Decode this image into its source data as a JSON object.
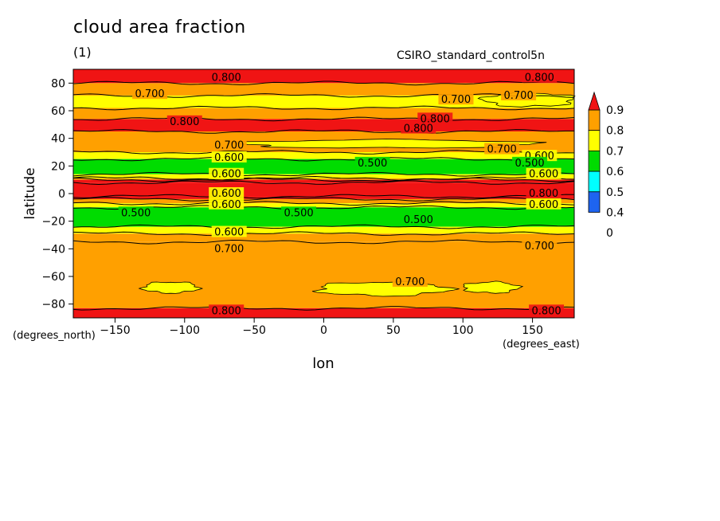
{
  "title": "cloud area fraction",
  "units": "(1)",
  "dataset": "CSIRO_standard_control5n",
  "chart_data": {
    "type": "heatmap",
    "title": "cloud area fraction",
    "xlabel": "lon",
    "ylabel": "latitude",
    "x_units": "(degrees_east)",
    "y_units": "(degrees_north)",
    "xlim": [
      -180,
      180
    ],
    "ylim": [
      -90,
      90
    ],
    "x_ticks": [
      -150,
      -100,
      -50,
      0,
      50,
      100,
      150
    ],
    "y_ticks": [
      -80,
      -60,
      -40,
      -20,
      0,
      20,
      40,
      60,
      80
    ],
    "colorbar": {
      "levels": [
        "0",
        "0.4",
        "0.5",
        "0.6",
        "0.7",
        "0.8",
        "0.9"
      ],
      "colors": [
        "#1e64f0",
        "#00ffff",
        "#00dc00",
        "#ffff00",
        "#ffa000",
        "#f01414"
      ],
      "extend": "max"
    },
    "zonal_bands": [
      {
        "lat_min": 80,
        "lat_max": 90,
        "value": 0.8
      },
      {
        "lat_min": 71,
        "lat_max": 80,
        "value": 0.7
      },
      {
        "lat_min": 62,
        "lat_max": 71,
        "value": 0.6
      },
      {
        "lat_min": 54,
        "lat_max": 62,
        "value": 0.7
      },
      {
        "lat_min": 45,
        "lat_max": 54,
        "value": 0.8
      },
      {
        "lat_min": 30,
        "lat_max": 45,
        "value": 0.7
      },
      {
        "lat_min": 25,
        "lat_max": 30,
        "value": 0.6
      },
      {
        "lat_min": 14,
        "lat_max": 25,
        "value": 0.5
      },
      {
        "lat_min": 11,
        "lat_max": 14,
        "value": 0.6
      },
      {
        "lat_min": 10,
        "lat_max": 11,
        "value": 0.7
      },
      {
        "lat_min": 8,
        "lat_max": 10,
        "value": 0.8
      },
      {
        "lat_min": -2,
        "lat_max": 8,
        "value": 0.9
      },
      {
        "lat_min": -4,
        "lat_max": -2,
        "value": 0.8
      },
      {
        "lat_min": -7,
        "lat_max": -4,
        "value": 0.7
      },
      {
        "lat_min": -10,
        "lat_max": -7,
        "value": 0.6
      },
      {
        "lat_min": -24,
        "lat_max": -10,
        "value": 0.5
      },
      {
        "lat_min": -29,
        "lat_max": -24,
        "value": 0.6
      },
      {
        "lat_min": -35,
        "lat_max": -29,
        "value": 0.7
      },
      {
        "lat_min": -83,
        "lat_max": -35,
        "value": 0.7
      },
      {
        "lat_min": -90,
        "lat_max": -83,
        "value": 0.8
      }
    ],
    "patches": [
      {
        "lon_min": -130,
        "lon_max": -90,
        "lat_min": -72,
        "lat_max": -64,
        "value": 0.6
      },
      {
        "lon_min": -5,
        "lon_max": 90,
        "lat_min": -74,
        "lat_max": -64,
        "value": 0.6
      },
      {
        "lon_min": 100,
        "lon_max": 140,
        "lat_min": -72,
        "lat_max": -64,
        "value": 0.6
      },
      {
        "lon_min": -60,
        "lon_max": 150,
        "lat_min": 33,
        "lat_max": 39,
        "value": 0.6
      },
      {
        "lon_min": 115,
        "lon_max": 180,
        "lat_min": 63,
        "lat_max": 73,
        "value": 0.6
      }
    ],
    "contour_labels": [
      {
        "text": "0.800",
        "lon": -70,
        "lat": 84
      },
      {
        "text": "0.800",
        "lon": 155,
        "lat": 84
      },
      {
        "text": "0.700",
        "lon": -125,
        "lat": 72
      },
      {
        "text": "0.700",
        "lon": 95,
        "lat": 68
      },
      {
        "text": "0.700",
        "lon": 140,
        "lat": 71
      },
      {
        "text": "0.800",
        "lon": -100,
        "lat": 52
      },
      {
        "text": "0.800",
        "lon": 80,
        "lat": 54
      },
      {
        "text": "0.800",
        "lon": 68,
        "lat": 47
      },
      {
        "text": "0.700",
        "lon": -68,
        "lat": 35
      },
      {
        "text": "0.700",
        "lon": 128,
        "lat": 32
      },
      {
        "text": "0.600",
        "lon": -68,
        "lat": 26
      },
      {
        "text": "0.600",
        "lon": 155,
        "lat": 27
      },
      {
        "text": "0.500",
        "lon": 35,
        "lat": 22
      },
      {
        "text": "0.500",
        "lon": 148,
        "lat": 22
      },
      {
        "text": "0.600",
        "lon": -70,
        "lat": 14
      },
      {
        "text": "0.600",
        "lon": 158,
        "lat": 14
      },
      {
        "text": "0.600",
        "lon": -70,
        "lat": 0
      },
      {
        "text": "0.800",
        "lon": 158,
        "lat": 0
      },
      {
        "text": "0.600",
        "lon": -70,
        "lat": -8
      },
      {
        "text": "0.600",
        "lon": 158,
        "lat": -8
      },
      {
        "text": "0.500",
        "lon": -135,
        "lat": -14
      },
      {
        "text": "0.500",
        "lon": -18,
        "lat": -14
      },
      {
        "text": "0.500",
        "lon": 68,
        "lat": -19
      },
      {
        "text": "0.600",
        "lon": -68,
        "lat": -28
      },
      {
        "text": "0.700",
        "lon": -68,
        "lat": -40
      },
      {
        "text": "0.700",
        "lon": 155,
        "lat": -38
      },
      {
        "text": "0.700",
        "lon": 62,
        "lat": -64
      },
      {
        "text": "0.800",
        "lon": -70,
        "lat": -85
      },
      {
        "text": "0.800",
        "lon": 160,
        "lat": -85
      }
    ]
  }
}
